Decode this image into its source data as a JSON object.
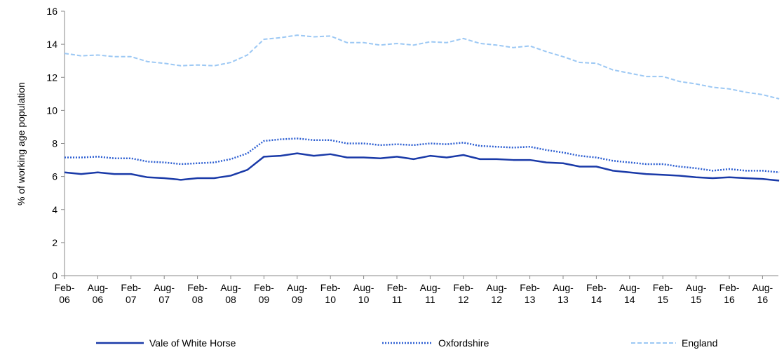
{
  "chart_data": {
    "type": "line",
    "y_label": "% of working age population",
    "categories": [
      "Feb-06",
      null,
      "Aug-06",
      null,
      "Feb-07",
      null,
      "Aug-07",
      null,
      "Feb-08",
      null,
      "Aug-08",
      null,
      "Feb-09",
      null,
      "Aug-09",
      null,
      "Feb-10",
      null,
      "Aug-10",
      null,
      "Feb-11",
      null,
      "Aug-11",
      null,
      "Feb-12",
      null,
      "Aug-12",
      null,
      "Feb-13",
      null,
      "Aug-13",
      null,
      "Feb-14",
      null,
      "Aug-14",
      null,
      "Feb-15",
      null,
      "Aug-15",
      null,
      "Feb-16",
      null,
      "Aug-16",
      null
    ],
    "ylim": [
      0,
      16
    ],
    "yticks": [
      0,
      2,
      4,
      6,
      8,
      10,
      12,
      14,
      16
    ],
    "series": [
      {
        "name": "Vale of White Horse",
        "color": "#1a3aa8",
        "style": "solid",
        "values": [
          6.25,
          6.15,
          6.25,
          6.15,
          6.15,
          5.95,
          5.9,
          5.8,
          5.9,
          5.9,
          6.05,
          6.4,
          7.2,
          7.25,
          7.4,
          7.25,
          7.35,
          7.15,
          7.15,
          7.1,
          7.2,
          7.05,
          7.25,
          7.15,
          7.3,
          7.05,
          7.05,
          7.0,
          7.0,
          6.85,
          6.8,
          6.6,
          6.6,
          6.35,
          6.25,
          6.15,
          6.1,
          6.05,
          5.95,
          5.9,
          5.95,
          5.9,
          5.85,
          5.75
        ]
      },
      {
        "name": "Oxfordshire",
        "color": "#2d5fd2",
        "style": "dotted",
        "values": [
          7.15,
          7.15,
          7.2,
          7.1,
          7.1,
          6.9,
          6.85,
          6.75,
          6.8,
          6.85,
          7.05,
          7.4,
          8.15,
          8.25,
          8.3,
          8.2,
          8.2,
          8.0,
          8.0,
          7.9,
          7.95,
          7.9,
          8.0,
          7.95,
          8.05,
          7.85,
          7.8,
          7.75,
          7.8,
          7.6,
          7.45,
          7.25,
          7.15,
          6.95,
          6.85,
          6.75,
          6.75,
          6.6,
          6.5,
          6.35,
          6.45,
          6.35,
          6.35,
          6.25
        ]
      },
      {
        "name": "England",
        "color": "#9cc8f4",
        "style": "dashed",
        "values": [
          13.45,
          13.3,
          13.35,
          13.25,
          13.25,
          12.95,
          12.85,
          12.7,
          12.75,
          12.7,
          12.9,
          13.35,
          14.3,
          14.4,
          14.55,
          14.45,
          14.5,
          14.1,
          14.1,
          13.95,
          14.05,
          13.95,
          14.15,
          14.1,
          14.35,
          14.05,
          13.95,
          13.8,
          13.9,
          13.55,
          13.25,
          12.9,
          12.85,
          12.45,
          12.25,
          12.05,
          12.05,
          11.75,
          11.6,
          11.4,
          11.3,
          11.1,
          10.95,
          10.7
        ]
      }
    ]
  }
}
